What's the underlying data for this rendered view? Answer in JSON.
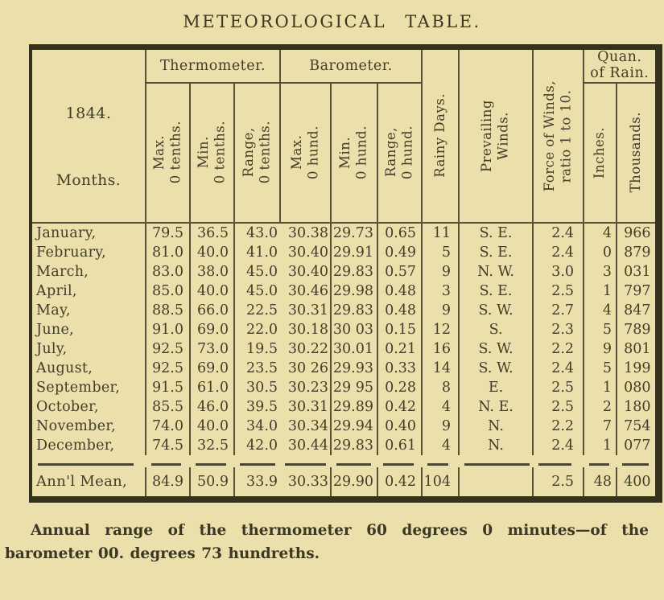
{
  "title": "METEOROLOGICAL TABLE.",
  "colors": {
    "paper": "#ebe0ab",
    "ink": "#413d28",
    "frame": "#34311d",
    "rule": "#56523a"
  },
  "table": {
    "year_label": "1844.",
    "months_label": "Months.",
    "groups": {
      "thermometer": "Thermometer.",
      "barometer": "Barometer.",
      "rain_line1": "Quan.",
      "rain_line2": "of Rain."
    },
    "headers": {
      "t_max": "Max.\n0 tenths.",
      "t_min": "Min.\n0 tenths.",
      "t_range": "Range,\n0 tenths.",
      "b_max": "Max.\n0 hund.",
      "b_min": "Min.\n0 hund.",
      "b_range": "Range,\n0 hund.",
      "rainy_days": "Rainy Days.",
      "winds": "Prevailing\nWinds.",
      "force": "Force of Winds,\nratio 1 to 10.",
      "inches": "Inches.",
      "thousands": "Thousands."
    },
    "rows": [
      {
        "month": "January,",
        "t_max": "79.5",
        "t_min": "36.5",
        "t_range": "43.0",
        "b_max": "30.38",
        "b_min": "29.73",
        "b_range": "0.65",
        "rainy_days": "11",
        "winds": "S. E.",
        "force": "2.4",
        "inches": "4",
        "thousands": "966"
      },
      {
        "month": "February,",
        "t_max": "81.0",
        "t_min": "40.0",
        "t_range": "41.0",
        "b_max": "30.40",
        "b_min": "29.91",
        "b_range": "0.49",
        "rainy_days": "5",
        "winds": "S. E.",
        "force": "2.4",
        "inches": "0",
        "thousands": "879"
      },
      {
        "month": "March,",
        "t_max": "83.0",
        "t_min": "38.0",
        "t_range": "45.0",
        "b_max": "30.40",
        "b_min": "29.83",
        "b_range": "0.57",
        "rainy_days": "9",
        "winds": "N. W.",
        "force": "3.0",
        "inches": "3",
        "thousands": "031"
      },
      {
        "month": "April,",
        "t_max": "85.0",
        "t_min": "40.0",
        "t_range": "45.0",
        "b_max": "30.46",
        "b_min": "29.98",
        "b_range": "0.48",
        "rainy_days": "3",
        "winds": "S. E.",
        "force": "2.5",
        "inches": "1",
        "thousands": "797"
      },
      {
        "month": "May,",
        "t_max": "88.5",
        "t_min": "66.0",
        "t_range": "22.5",
        "b_max": "30.31",
        "b_min": "29.83",
        "b_range": "0.48",
        "rainy_days": "9",
        "winds": "S. W.",
        "force": "2.7",
        "inches": "4",
        "thousands": "847"
      },
      {
        "month": "June,",
        "t_max": "91.0",
        "t_min": "69.0",
        "t_range": "22.0",
        "b_max": "30.18",
        "b_min": "30 03",
        "b_range": "0.15",
        "rainy_days": "12",
        "winds": "S.",
        "force": "2.3",
        "inches": "5",
        "thousands": "789"
      },
      {
        "month": "July,",
        "t_max": "92.5",
        "t_min": "73.0",
        "t_range": "19.5",
        "b_max": "30.22",
        "b_min": "30.01",
        "b_range": "0.21",
        "rainy_days": "16",
        "winds": "S. W.",
        "force": "2.2",
        "inches": "9",
        "thousands": "801"
      },
      {
        "month": "August,",
        "t_max": "92.5",
        "t_min": "69.0",
        "t_range": "23.5",
        "b_max": "30 26",
        "b_min": "29.93",
        "b_range": "0.33",
        "rainy_days": "14",
        "winds": "S. W.",
        "force": "2.4",
        "inches": "5",
        "thousands": "199"
      },
      {
        "month": "September,",
        "t_max": "91.5",
        "t_min": "61.0",
        "t_range": "30.5",
        "b_max": "30.23",
        "b_min": "29 95",
        "b_range": "0.28",
        "rainy_days": "8",
        "winds": "E.",
        "force": "2.5",
        "inches": "1",
        "thousands": "080"
      },
      {
        "month": "October,",
        "t_max": "85.5",
        "t_min": "46.0",
        "t_range": "39.5",
        "b_max": "30.31",
        "b_min": "29.89",
        "b_range": "0.42",
        "rainy_days": "4",
        "winds": "N. E.",
        "force": "2.5",
        "inches": "2",
        "thousands": "180"
      },
      {
        "month": "November,",
        "t_max": "74.0",
        "t_min": "40.0",
        "t_range": "34.0",
        "b_max": "30.34",
        "b_min": "29.94",
        "b_range": "0.40",
        "rainy_days": "9",
        "winds": "N.",
        "force": "2.2",
        "inches": "7",
        "thousands": "754"
      },
      {
        "month": "December,",
        "t_max": "74.5",
        "t_min": "32.5",
        "t_range": "42.0",
        "b_max": "30.44",
        "b_min": "29.83",
        "b_range": "0.61",
        "rainy_days": "4",
        "winds": "N.",
        "force": "2.4",
        "inches": "1",
        "thousands": "077"
      }
    ],
    "mean": {
      "month": "Ann'l Mean,",
      "t_max": "84.9",
      "t_min": "50.9",
      "t_range": "33.9",
      "b_max": "30.33",
      "b_min": "29.90",
      "b_range": "0.42",
      "rainy_days": "104",
      "winds": "",
      "force": "2.5",
      "inches": "48",
      "thousands": "400"
    }
  },
  "footer": {
    "line1": "Annual range of the thermometer 60 degrees 0 minutes—of the",
    "line2": "barometer 00. degrees 73 hundreths."
  }
}
